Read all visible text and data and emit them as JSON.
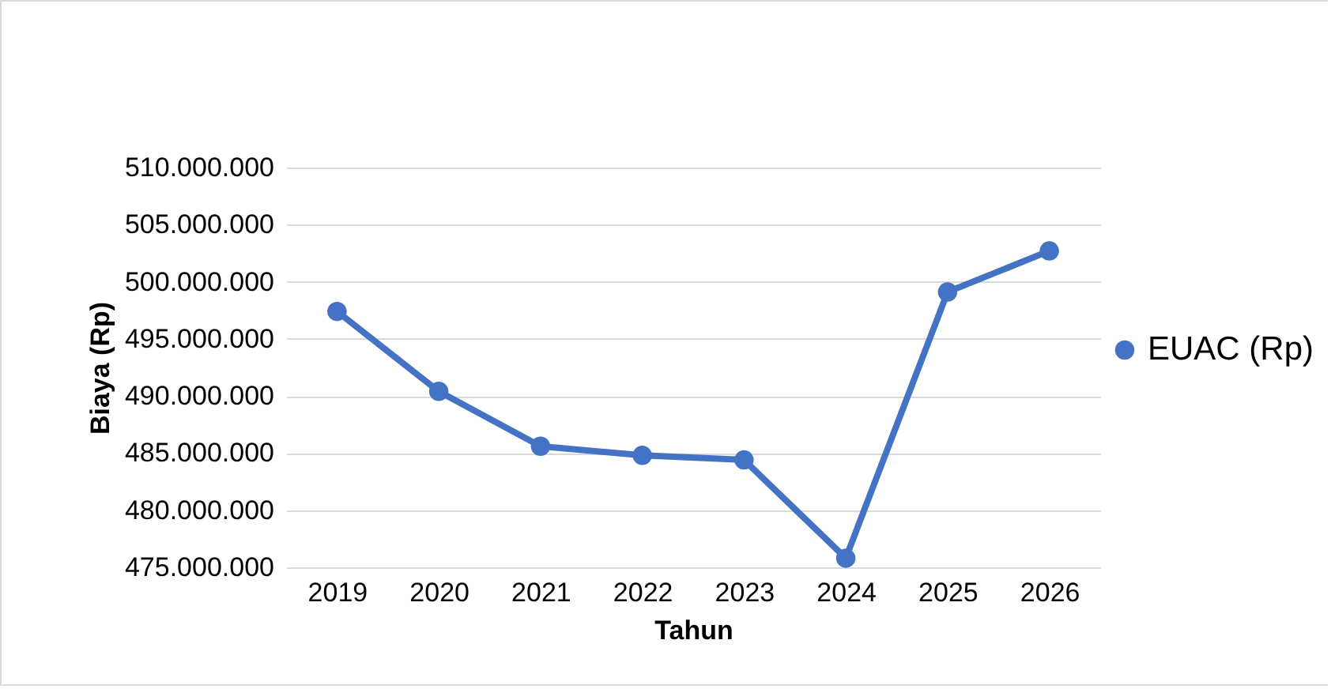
{
  "chart_data": {
    "type": "line",
    "xlabel": "Tahun",
    "ylabel": "Biaya (Rp)",
    "categories": [
      "2019",
      "2020",
      "2021",
      "2022",
      "2023",
      "2024",
      "2025",
      "2026"
    ],
    "series": [
      {
        "name": "EUAC (Rp)",
        "color": "#4472c4",
        "values": [
          497400000,
          490400000,
          485600000,
          484800000,
          484400000,
          475800000,
          499100000,
          502700000
        ]
      }
    ],
    "ylim": [
      475000000,
      510000000
    ],
    "yticks": [
      {
        "value": 475000000,
        "label": "475.000.000"
      },
      {
        "value": 480000000,
        "label": "480.000.000"
      },
      {
        "value": 485000000,
        "label": "485.000.000"
      },
      {
        "value": 490000000,
        "label": "490.000.000"
      },
      {
        "value": 495000000,
        "label": "495.000.000"
      },
      {
        "value": 500000000,
        "label": "500.000.000"
      },
      {
        "value": 505000000,
        "label": "505.000.000"
      },
      {
        "value": 510000000,
        "label": "510.000.000"
      }
    ],
    "grid": "y",
    "legend": "right",
    "marker": "circle",
    "line_style": "solid"
  }
}
